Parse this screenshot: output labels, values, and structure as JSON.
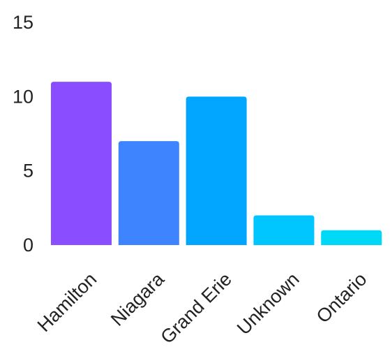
{
  "chart_data": {
    "type": "bar",
    "categories": [
      "Hamilton",
      "Niagara",
      "Grand Erie",
      "Unknown",
      "Ontario"
    ],
    "values": [
      11,
      7,
      10,
      2,
      1
    ],
    "colors": [
      "#8a4dff",
      "#3f84ff",
      "#03a6ff",
      "#00c6ff",
      "#00d9f5"
    ],
    "title": "",
    "xlabel": "",
    "ylabel": "",
    "ylim": [
      0,
      15
    ],
    "yticks": [
      0,
      5,
      10,
      15
    ],
    "grid": false,
    "legend": "none"
  }
}
